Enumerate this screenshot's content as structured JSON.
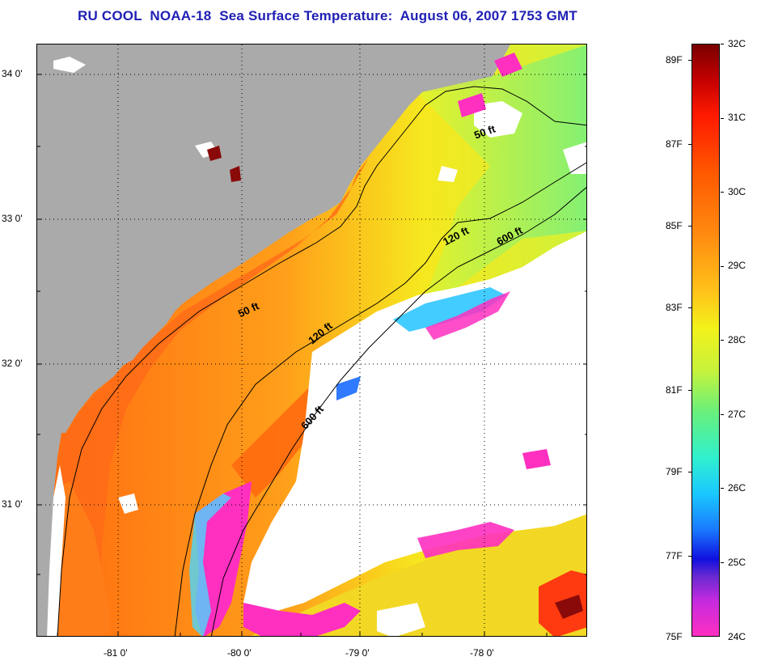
{
  "title": "RU COOL  NOAA-18  Sea Surface Temperature:  August 06, 2007 1753 GMT",
  "map": {
    "lat_ticks": [
      "34 0'",
      "33 0'",
      "32 0'",
      "31 0'"
    ],
    "lon_ticks": [
      "-81 0'",
      "-80 0'",
      "-79 0'",
      "-78 0'"
    ],
    "contours": [
      {
        "label": "50 ft"
      },
      {
        "label": "50 ft"
      },
      {
        "label": "120 ft"
      },
      {
        "label": "120 ft"
      },
      {
        "label": "600 ft"
      },
      {
        "label": "600 ft"
      }
    ],
    "colors": {
      "land": "#aaaaaa",
      "cloud": "#ffffff",
      "warm": "#ff6a10",
      "cold": "#ff2fc0"
    }
  },
  "colorbar": {
    "fahrenheit_labels": [
      "89F",
      "87F",
      "85F",
      "83F",
      "81F",
      "79F",
      "77F",
      "75F"
    ],
    "celsius_labels": [
      "32C",
      "31C",
      "30C",
      "29C",
      "28C",
      "27C",
      "26C",
      "25C",
      "24C"
    ],
    "range_c": [
      24,
      32
    ],
    "range_f": [
      75,
      89.6
    ]
  }
}
